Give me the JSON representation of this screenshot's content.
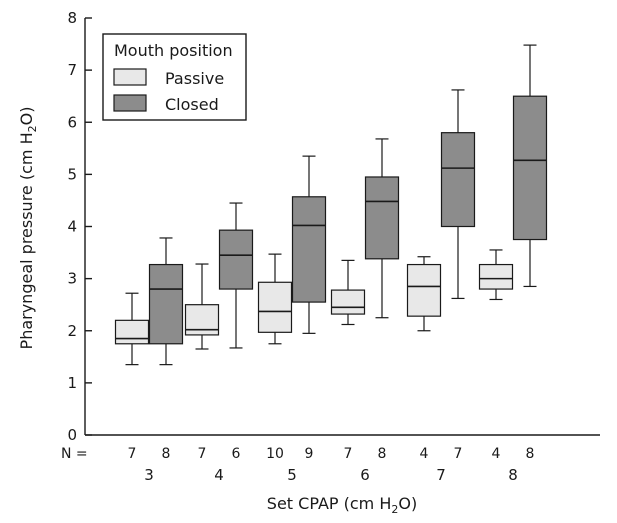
{
  "chart_data": {
    "type": "box",
    "xlabel": "Set CPAP (cm H",
    "xlabel_sub": "2",
    "xlabel_end": "O)",
    "ylabel": "Pharyngeal pressure (cm H",
    "ylabel_sub": "2",
    "ylabel_end": "O)",
    "ylim": [
      0,
      8
    ],
    "yticks": [
      "0",
      "1",
      "2",
      "3",
      "4",
      "5",
      "6",
      "7",
      "8"
    ],
    "categories": [
      "3",
      "4",
      "5",
      "6",
      "7",
      "8"
    ],
    "n_prefix": "N =",
    "legend": {
      "title": "Mouth position",
      "placement": "top-left",
      "items": [
        {
          "label": "Passive",
          "color": "#e8e8e8"
        },
        {
          "label": "Closed",
          "color": "#8c8c8c"
        }
      ]
    },
    "series": [
      {
        "name": "Passive",
        "color": "#e8e8e8",
        "n": [
          "7",
          "7",
          "10",
          "7",
          "4",
          "4"
        ],
        "boxes": [
          {
            "whisker_low": 1.35,
            "q1": 1.75,
            "median": 1.85,
            "q3": 2.2,
            "whisker_high": 2.72
          },
          {
            "whisker_low": 1.65,
            "q1": 1.92,
            "median": 2.02,
            "q3": 2.5,
            "whisker_high": 3.28
          },
          {
            "whisker_low": 1.75,
            "q1": 1.97,
            "median": 2.37,
            "q3": 2.93,
            "whisker_high": 3.47
          },
          {
            "whisker_low": 2.12,
            "q1": 2.32,
            "median": 2.45,
            "q3": 2.78,
            "whisker_high": 3.35
          },
          {
            "whisker_low": 2.0,
            "q1": 2.28,
            "median": 2.85,
            "q3": 3.27,
            "whisker_high": 3.42
          },
          {
            "whisker_low": 2.6,
            "q1": 2.8,
            "median": 3.0,
            "q3": 3.27,
            "whisker_high": 3.55
          }
        ]
      },
      {
        "name": "Closed",
        "color": "#8c8c8c",
        "n": [
          "8",
          "6",
          "9",
          "8",
          "7",
          "8"
        ],
        "boxes": [
          {
            "whisker_low": 1.35,
            "q1": 1.75,
            "median": 2.8,
            "q3": 3.27,
            "whisker_high": 3.78
          },
          {
            "whisker_low": 1.67,
            "q1": 2.8,
            "median": 3.45,
            "q3": 3.93,
            "whisker_high": 4.45
          },
          {
            "whisker_low": 1.95,
            "q1": 2.55,
            "median": 4.02,
            "q3": 4.57,
            "whisker_high": 5.35
          },
          {
            "whisker_low": 2.25,
            "q1": 3.38,
            "median": 4.48,
            "q3": 4.95,
            "whisker_high": 5.68
          },
          {
            "whisker_low": 2.62,
            "q1": 4.0,
            "median": 5.12,
            "q3": 5.8,
            "whisker_high": 6.62
          },
          {
            "whisker_low": 2.85,
            "q1": 3.75,
            "median": 5.27,
            "q3": 6.5,
            "whisker_high": 7.48
          }
        ]
      }
    ]
  }
}
